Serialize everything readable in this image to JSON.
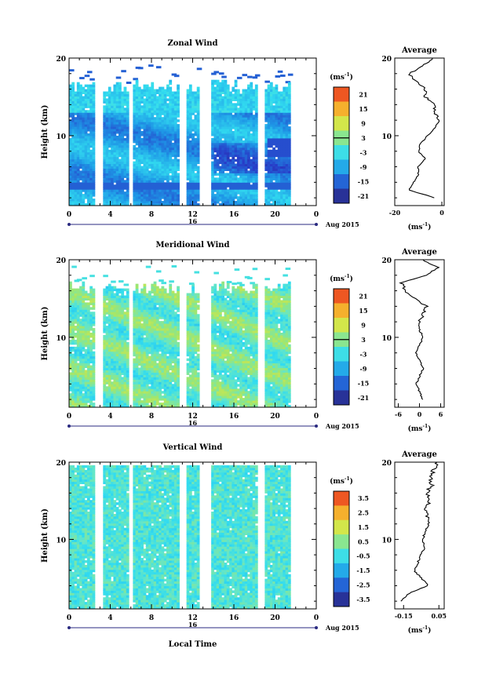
{
  "chart_data": [
    {
      "type": "heatmap",
      "title": "Zonal Wind",
      "ylabel": "Height (km)",
      "ylim": [
        1,
        20
      ],
      "yticks": [
        "20",
        "10"
      ],
      "xlim": [
        0,
        24
      ],
      "xticks": [
        "0",
        "4",
        "8",
        "12",
        "16",
        "20",
        "0"
      ],
      "date_label": "16",
      "month_label": "Aug 2015",
      "colorbar": {
        "unit": "(ms",
        "unit_exp": "-1",
        "unit_close": ")",
        "ticks": [
          "21",
          "15",
          "9",
          "3",
          "-3",
          "-9",
          "-15",
          "-21"
        ]
      },
      "data_gaps_hours": [
        [
          2.5,
          3.4
        ],
        [
          5.8,
          6.2
        ],
        [
          10.8,
          11.5
        ],
        [
          12.6,
          13.8
        ],
        [
          18.4,
          19.0
        ],
        [
          21.5,
          24
        ]
      ],
      "average": {
        "title": "Average",
        "xlabel": "(ms",
        "xlabel_exp": "-1",
        "xlabel_close": ")",
        "xticks": [
          "-20",
          "0"
        ],
        "xlim": [
          -20,
          1
        ],
        "yticks": [
          "20",
          "10"
        ],
        "height_km": [
          2,
          3,
          4,
          5,
          6,
          7,
          8,
          9,
          10,
          11,
          12,
          13,
          14,
          15,
          16,
          17,
          18,
          19,
          20
        ],
        "values": [
          -3,
          -14,
          -12,
          -10,
          -10,
          -7,
          -10,
          -9,
          -6,
          -3,
          -1,
          -3,
          -3,
          -7,
          -7,
          -11,
          -14,
          -8,
          -4
        ]
      }
    },
    {
      "type": "heatmap",
      "title": "Meridional Wind",
      "ylabel": "Height (km)",
      "ylim": [
        1,
        20
      ],
      "yticks": [
        "20",
        "10"
      ],
      "xlim": [
        0,
        24
      ],
      "xticks": [
        "0",
        "4",
        "8",
        "12",
        "16",
        "20",
        "0"
      ],
      "date_label": "16",
      "month_label": "Aug 2015",
      "colorbar": {
        "unit": "(ms",
        "unit_exp": "-1",
        "unit_close": ")",
        "ticks": [
          "21",
          "15",
          "9",
          "3",
          "-3",
          "-9",
          "-15",
          "-21"
        ]
      },
      "average": {
        "title": "Average",
        "xlabel": "(ms",
        "xlabel_exp": "-1",
        "xlabel_close": ")",
        "xticks": [
          "-6",
          "0",
          "6"
        ],
        "xlim": [
          -7,
          7
        ],
        "yticks": [
          "20",
          "10"
        ],
        "height_km": [
          2,
          3,
          4,
          5,
          6,
          7,
          8,
          9,
          10,
          11,
          12,
          13,
          14,
          15,
          16,
          17,
          18,
          19,
          20
        ],
        "values": [
          1,
          0,
          -1,
          0,
          1,
          0,
          -1,
          0,
          1,
          0,
          0,
          1,
          2,
          -1,
          -4,
          -5,
          2,
          5,
          1
        ]
      }
    },
    {
      "type": "heatmap",
      "title": "Vertical Wind",
      "ylabel": "Height (km)",
      "xlabel": "Local Time",
      "ylim": [
        1,
        20
      ],
      "yticks": [
        "20",
        "10"
      ],
      "xlim": [
        0,
        24
      ],
      "xticks": [
        "0",
        "4",
        "8",
        "12",
        "16",
        "20",
        "0"
      ],
      "date_label": "16",
      "month_label": "Aug 2015",
      "colorbar": {
        "unit": "(ms",
        "unit_exp": "-1",
        "unit_close": ")",
        "ticks": [
          "3.5",
          "2.5",
          "1.5",
          "0.5",
          "-0.5",
          "-1.5",
          "-2.5",
          "-3.5"
        ]
      },
      "average": {
        "title": "Average",
        "xlabel": "(ms",
        "xlabel_exp": "-1",
        "xlabel_close": ")",
        "xticks": [
          "-0.15",
          "0.05"
        ],
        "xlim": [
          -0.2,
          0.08
        ],
        "yticks": [
          "20",
          "10"
        ],
        "height_km": [
          2,
          3,
          4,
          5,
          6,
          7,
          8,
          9,
          10,
          11,
          12,
          13,
          14,
          15,
          16,
          17,
          18,
          19,
          20
        ],
        "values": [
          -0.17,
          -0.12,
          -0.01,
          -0.05,
          -0.09,
          -0.07,
          -0.05,
          -0.03,
          -0.04,
          -0.03,
          -0.01,
          -0.02,
          -0.03,
          0.0,
          -0.02,
          0.01,
          0.0,
          0.02,
          0.04
        ]
      }
    }
  ]
}
